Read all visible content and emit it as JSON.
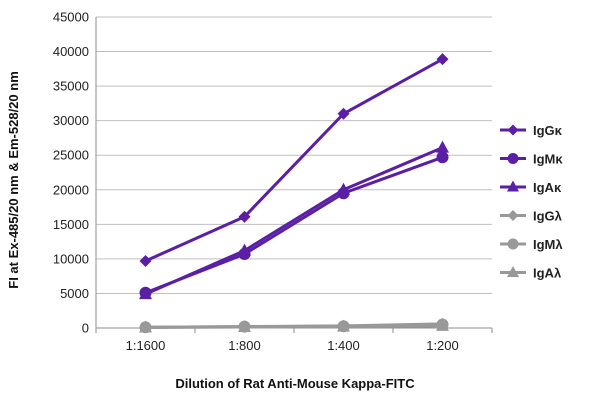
{
  "chart_data": {
    "type": "line",
    "title": "",
    "xlabel": "Dilution of Rat Anti-Mouse Kappa-FITC",
    "ylabel": "FI at Ex-485/20 nm & Em-528/20 nm",
    "categories": [
      "1:1600",
      "1:800",
      "1:400",
      "1:200"
    ],
    "ylim": [
      0,
      45000
    ],
    "yticks": [
      0,
      5000,
      10000,
      15000,
      20000,
      25000,
      30000,
      35000,
      40000,
      45000
    ],
    "ytick_labels": [
      "0",
      "5000",
      "10000",
      "15000",
      "20000",
      "25000",
      "30000",
      "35000",
      "40000",
      "45000"
    ],
    "grid": true,
    "legend_position": "right",
    "series": [
      {
        "name": "IgGκ",
        "values": [
          9700,
          16100,
          31000,
          38900
        ],
        "color": "#5b1fa6",
        "marker": "diamond"
      },
      {
        "name": "IgMκ",
        "values": [
          5100,
          10700,
          19500,
          24700
        ],
        "color": "#5b1fa6",
        "marker": "circle"
      },
      {
        "name": "IgAκ",
        "values": [
          4900,
          11200,
          20000,
          26100
        ],
        "color": "#5b1fa6",
        "marker": "triangle"
      },
      {
        "name": "IgGλ",
        "values": [
          100,
          200,
          300,
          600
        ],
        "color": "#999999",
        "marker": "diamond"
      },
      {
        "name": "IgMλ",
        "values": [
          100,
          200,
          250,
          500
        ],
        "color": "#999999",
        "marker": "circle"
      },
      {
        "name": "IgAλ",
        "values": [
          80,
          150,
          200,
          300
        ],
        "color": "#999999",
        "marker": "triangle"
      }
    ]
  }
}
